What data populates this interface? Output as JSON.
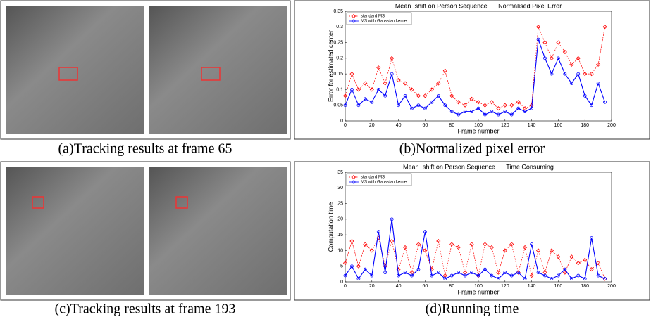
{
  "captions": [
    "(a)Tracking results at frame 65",
    "(b)Normalized pixel error",
    "(c)Tracking results at frame 193",
    "(d)Running time"
  ],
  "chart_data": [
    {
      "type": "line",
      "title": "Mean−shift on Person Sequence −− Normalised Pixel Error",
      "x_label": "Frame number",
      "y_label": "Error for estimated center",
      "x": [
        0,
        5,
        10,
        15,
        20,
        25,
        30,
        35,
        40,
        45,
        50,
        55,
        60,
        65,
        70,
        75,
        80,
        85,
        90,
        95,
        100,
        105,
        110,
        115,
        120,
        125,
        130,
        135,
        140,
        145,
        150,
        155,
        160,
        165,
        170,
        175,
        180,
        185,
        190,
        195
      ],
      "series": [
        {
          "name": "standard MS",
          "color": "#ff0000",
          "marker": "diamond",
          "dashed": true,
          "values": [
            0.08,
            0.15,
            0.1,
            0.12,
            0.1,
            0.17,
            0.12,
            0.2,
            0.13,
            0.12,
            0.1,
            0.08,
            0.08,
            0.1,
            0.12,
            0.16,
            0.08,
            0.06,
            0.05,
            0.07,
            0.06,
            0.05,
            0.06,
            0.04,
            0.05,
            0.05,
            0.06,
            0.04,
            0.05,
            0.3,
            0.25,
            0.2,
            0.25,
            0.22,
            0.18,
            0.2,
            0.15,
            0.15,
            0.18,
            0.3
          ]
        },
        {
          "name": "MS with Gaussian kernel",
          "color": "#0000ff",
          "marker": "circle",
          "dashed": false,
          "values": [
            0.05,
            0.1,
            0.05,
            0.07,
            0.06,
            0.1,
            0.08,
            0.15,
            0.05,
            0.08,
            0.04,
            0.05,
            0.04,
            0.06,
            0.08,
            0.05,
            0.03,
            0.02,
            0.03,
            0.03,
            0.04,
            0.02,
            0.03,
            0.02,
            0.03,
            0.02,
            0.04,
            0.03,
            0.04,
            0.26,
            0.2,
            0.15,
            0.2,
            0.15,
            0.12,
            0.15,
            0.08,
            0.05,
            0.12,
            0.06
          ]
        }
      ],
      "xlim": [
        0,
        200
      ],
      "xticks": [
        0,
        20,
        40,
        60,
        80,
        100,
        120,
        140,
        160,
        180,
        200
      ],
      "ylim": [
        0,
        0.35
      ],
      "yticks": [
        0,
        0.05,
        0.1,
        0.15,
        0.2,
        0.25,
        0.3,
        0.35
      ],
      "legend": "upper left"
    },
    {
      "type": "line",
      "title": "Mean−shift on Person Sequence −− Time Consuming",
      "x_label": "Frame number",
      "y_label": "Computation time",
      "x": [
        0,
        5,
        10,
        15,
        20,
        25,
        30,
        35,
        40,
        45,
        50,
        55,
        60,
        65,
        70,
        75,
        80,
        85,
        90,
        95,
        100,
        105,
        110,
        115,
        120,
        125,
        130,
        135,
        140,
        145,
        150,
        155,
        160,
        165,
        170,
        175,
        180,
        185,
        190,
        195
      ],
      "series": [
        {
          "name": "standard MS",
          "color": "#ff0000",
          "marker": "diamond",
          "dashed": true,
          "values": [
            6,
            13,
            5,
            12,
            10,
            14,
            5,
            13,
            4,
            11,
            3,
            12,
            10,
            4,
            13,
            2,
            12,
            11,
            3,
            12,
            2,
            12,
            11,
            3,
            10,
            12,
            3,
            11,
            2,
            10,
            3,
            10,
            8,
            3,
            8,
            6,
            7,
            4,
            6,
            1
          ]
        },
        {
          "name": "MS with Gaussian kernel",
          "color": "#0000ff",
          "marker": "circle",
          "dashed": false,
          "values": [
            2,
            5,
            1,
            4,
            2,
            16,
            3,
            20,
            2,
            3,
            2,
            4,
            16,
            2,
            3,
            1,
            2,
            3,
            2,
            3,
            2,
            4,
            2,
            1,
            3,
            2,
            3,
            1,
            12,
            3,
            2,
            1,
            2,
            4,
            1,
            2,
            1,
            14,
            2,
            1
          ]
        }
      ],
      "xlim": [
        0,
        200
      ],
      "xticks": [
        0,
        20,
        40,
        60,
        80,
        100,
        120,
        140,
        160,
        180,
        200
      ],
      "ylim": [
        0,
        35
      ],
      "yticks": [
        0,
        5,
        10,
        15,
        20,
        25,
        30,
        35
      ],
      "legend": "upper left"
    }
  ]
}
